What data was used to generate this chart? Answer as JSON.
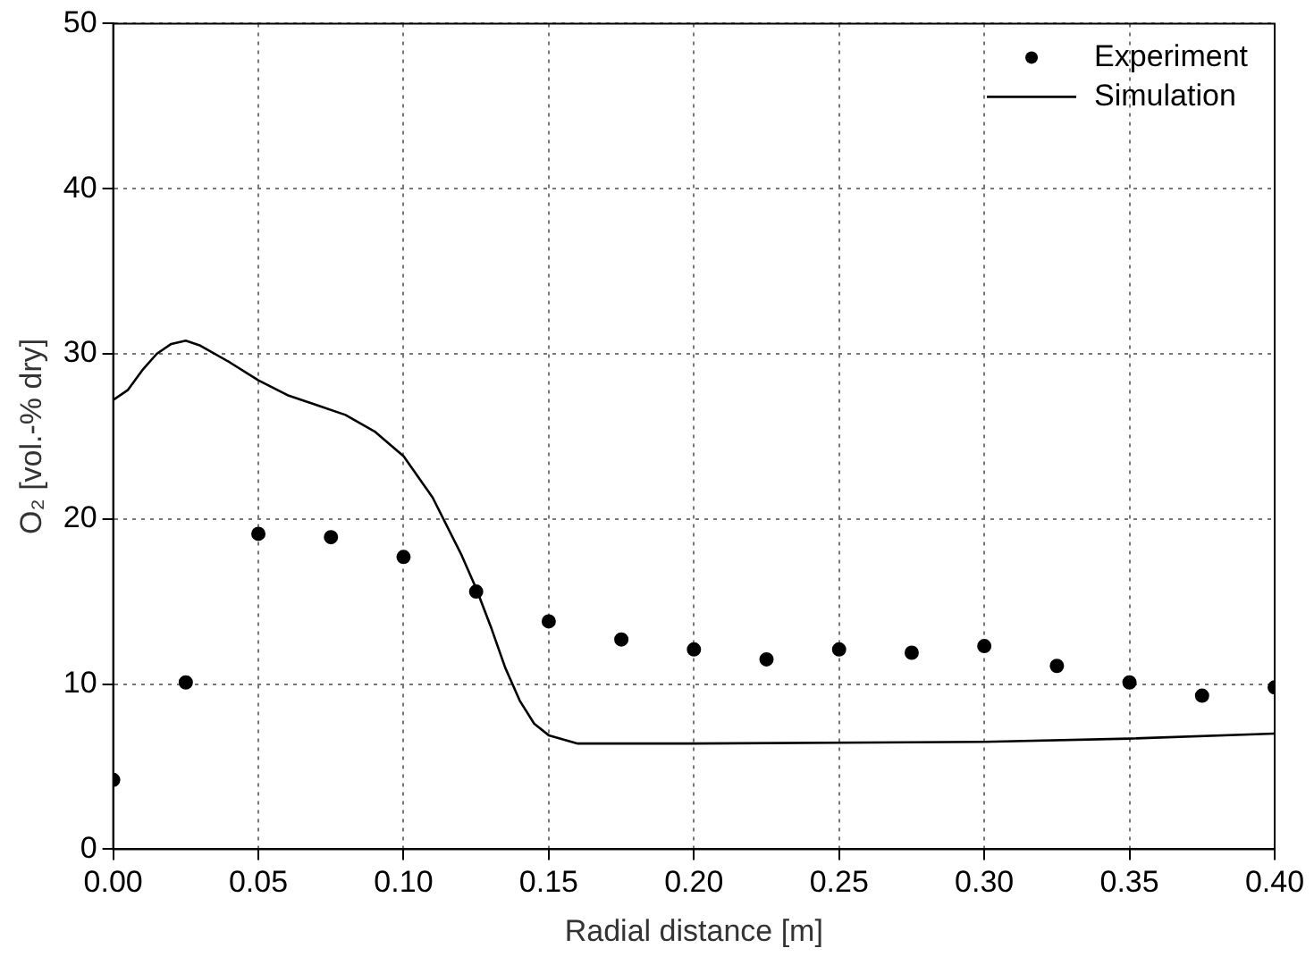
{
  "chart_data": {
    "type": "scatter",
    "xlabel": "Radial distance [m]",
    "ylabel": "O₂ [vol.-% dry]",
    "xlim": [
      0,
      0.4
    ],
    "ylim": [
      0,
      50
    ],
    "xticks": [
      {
        "value": 0,
        "label": "0.00"
      },
      {
        "value": 0.05,
        "label": "0.05"
      },
      {
        "value": 0.1,
        "label": "0.10"
      },
      {
        "value": 0.15,
        "label": "0.15"
      },
      {
        "value": 0.2,
        "label": "0.20"
      },
      {
        "value": 0.25,
        "label": "0.25"
      },
      {
        "value": 0.3,
        "label": "0.30"
      },
      {
        "value": 0.35,
        "label": "0.35"
      },
      {
        "value": 0.4,
        "label": "0.40"
      }
    ],
    "yticks": [
      0,
      10,
      20,
      30,
      40,
      50
    ],
    "grid": true,
    "legend": "top right",
    "series": [
      {
        "name": "Experiment",
        "type": "scatter",
        "marker": "circle",
        "color": "#000000",
        "x": [
          0,
          0.025,
          0.05,
          0.075,
          0.1,
          0.125,
          0.15,
          0.175,
          0.2,
          0.225,
          0.25,
          0.275,
          0.3,
          0.325,
          0.35,
          0.375,
          0.4
        ],
        "values": [
          4.2,
          10.1,
          19.1,
          18.9,
          17.7,
          15.6,
          13.8,
          12.7,
          12.1,
          11.5,
          12.1,
          11.9,
          12.3,
          11.1,
          10.1,
          9.3,
          9.8
        ]
      },
      {
        "name": "Simulation",
        "type": "line",
        "marker": "none",
        "line_style": "solid",
        "color": "#000000",
        "x": [
          0,
          0.005,
          0.01,
          0.015,
          0.02,
          0.025,
          0.03,
          0.04,
          0.05,
          0.06,
          0.07,
          0.08,
          0.09,
          0.1,
          0.11,
          0.12,
          0.125,
          0.13,
          0.135,
          0.14,
          0.145,
          0.15,
          0.16,
          0.2,
          0.3,
          0.35,
          0.4
        ],
        "values": [
          27.2,
          27.8,
          29,
          30,
          30.6,
          30.8,
          30.5,
          29.5,
          28.4,
          27.5,
          26.9,
          26.3,
          25.3,
          23.8,
          21.3,
          17.8,
          15.8,
          13.5,
          11,
          9,
          7.6,
          6.9,
          6.4,
          6.4,
          6.5,
          6.7,
          7
        ]
      }
    ]
  }
}
